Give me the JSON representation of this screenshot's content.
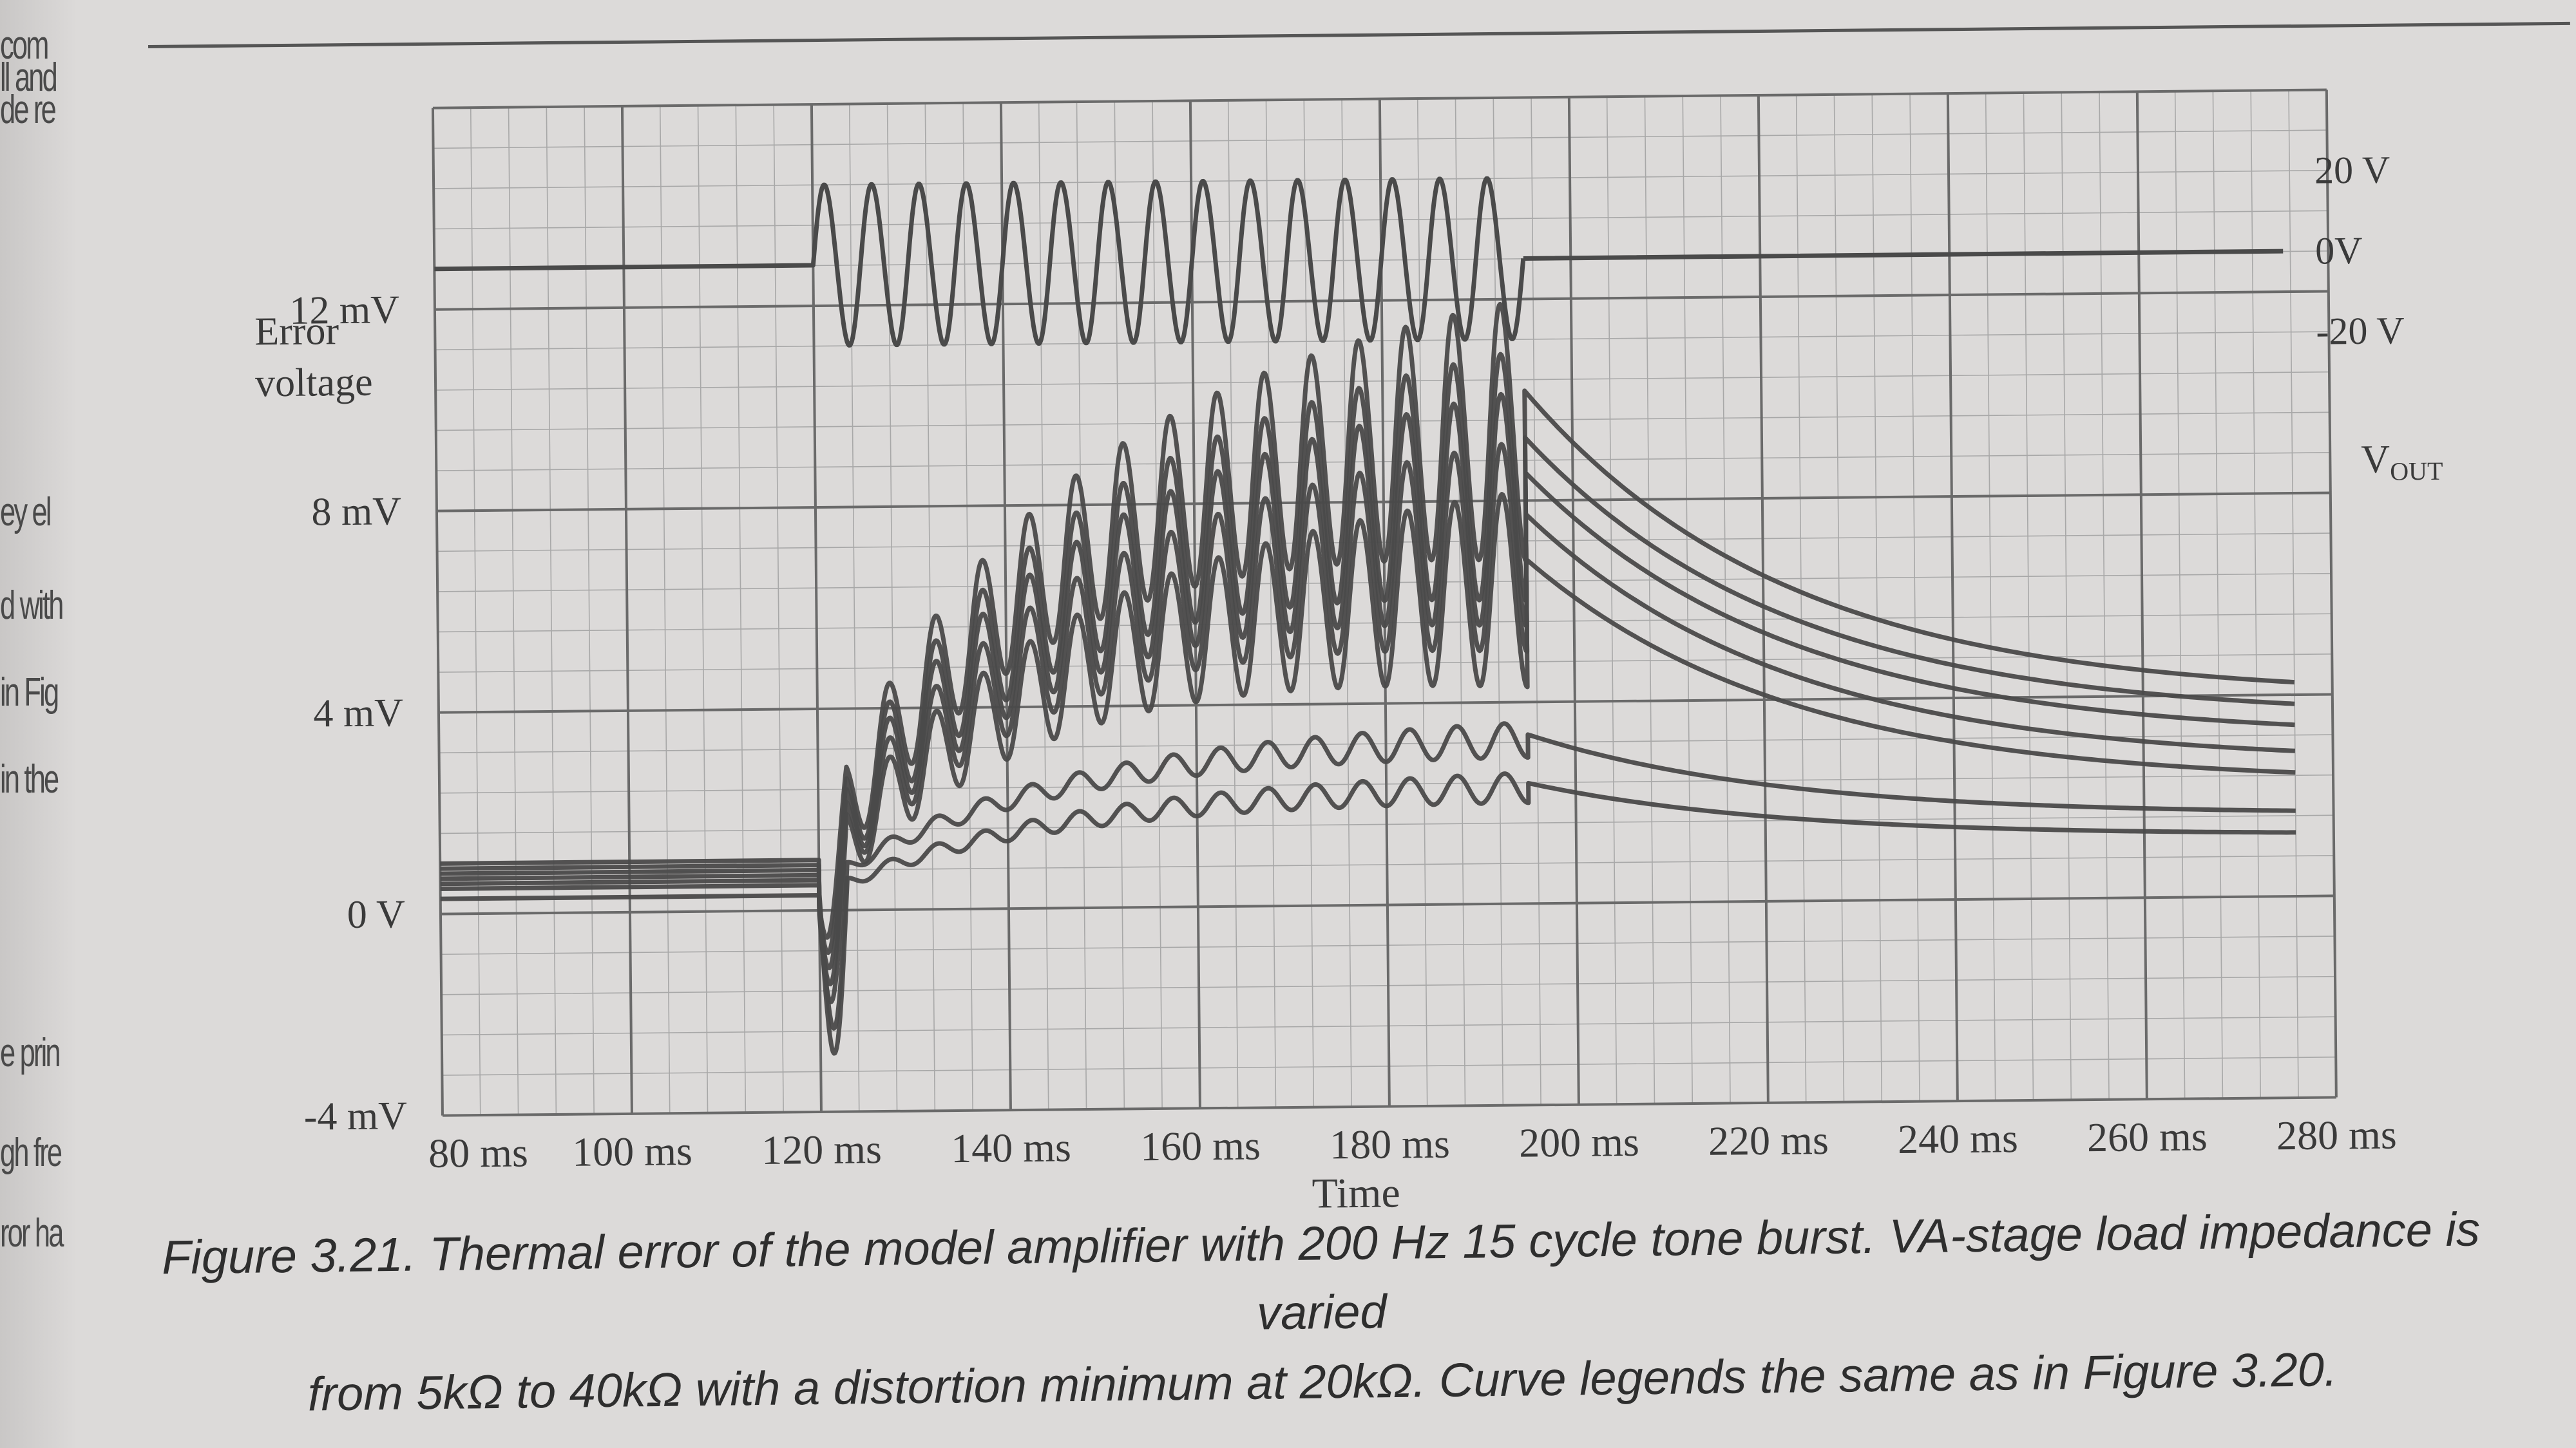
{
  "margin_fragments": [
    "com",
    "ll and",
    "de re",
    "ey el",
    "d with",
    "in Fig",
    "in the",
    "e prin",
    "gh fre",
    "ror ha"
  ],
  "chart_data": {
    "type": "line",
    "x_label": "Time",
    "y_label_lines": [
      "Error",
      "voltage"
    ],
    "x_ticks": [
      "80 ms",
      "100 ms",
      "120 ms",
      "140 ms",
      "160 ms",
      "180 ms",
      "200 ms",
      "220 ms",
      "240 ms",
      "260 ms",
      "280 ms"
    ],
    "x_range_ms": [
      80,
      280
    ],
    "y_ticks": [
      "12 mV",
      "8 mV",
      "4 mV",
      "0 V",
      "-4 mV"
    ],
    "y_range_mV": [
      -4,
      16
    ],
    "grid": true,
    "vout_axis": {
      "label": "V",
      "label_subscript": "OUT",
      "ticks": [
        "20 V",
        "0V",
        "-20 V"
      ],
      "tick_values_V": [
        20,
        0,
        -20
      ]
    },
    "tone_burst": {
      "frequency_hz": 200,
      "cycles": 15,
      "start_ms": 120,
      "end_ms": 195,
      "amplitude_V": 20
    },
    "error_series": [
      {
        "pre_burst_mV": 1.0,
        "peak_mV": 12.0,
        "trough_mV": 6.8,
        "end_level_mV": 3.9,
        "at_280ms_mV": 3.9
      },
      {
        "pre_burst_mV": 0.9,
        "peak_mV": 11.0,
        "trough_mV": 6.0,
        "end_level_mV": 3.5,
        "at_280ms_mV": 3.5
      },
      {
        "pre_burst_mV": 0.8,
        "peak_mV": 10.2,
        "trough_mV": 5.5,
        "end_level_mV": 3.1,
        "at_280ms_mV": 3.1
      },
      {
        "pre_burst_mV": 0.7,
        "peak_mV": 9.2,
        "trough_mV": 5.0,
        "end_level_mV": 2.6,
        "at_280ms_mV": 2.6
      },
      {
        "pre_burst_mV": 0.6,
        "peak_mV": 8.2,
        "trough_mV": 4.3,
        "end_level_mV": 2.2,
        "at_280ms_mV": 2.2
      },
      {
        "pre_burst_mV": 0.5,
        "peak_mV": 3.6,
        "trough_mV": 2.9,
        "end_level_mV": 1.6,
        "at_280ms_mV": 1.6
      },
      {
        "pre_burst_mV": 0.3,
        "peak_mV": 2.6,
        "trough_mV": 2.0,
        "end_level_mV": 1.2,
        "at_280ms_mV": 1.2
      }
    ]
  },
  "caption": {
    "line1": "Figure 3.21. Thermal error of the model amplifier with 200 Hz 15 cycle tone burst. VA-stage load impedance is varied",
    "line2": "from 5kΩ to 40kΩ with a distortion minimum at 20kΩ. Curve legends the same as in Figure 3.20."
  },
  "colors": {
    "paper": "#dcdad9",
    "grid_major": "#6a6a6a",
    "grid_minor": "#a8a8a8",
    "trace": "#4a4a4a",
    "text": "#3a3a3a"
  }
}
